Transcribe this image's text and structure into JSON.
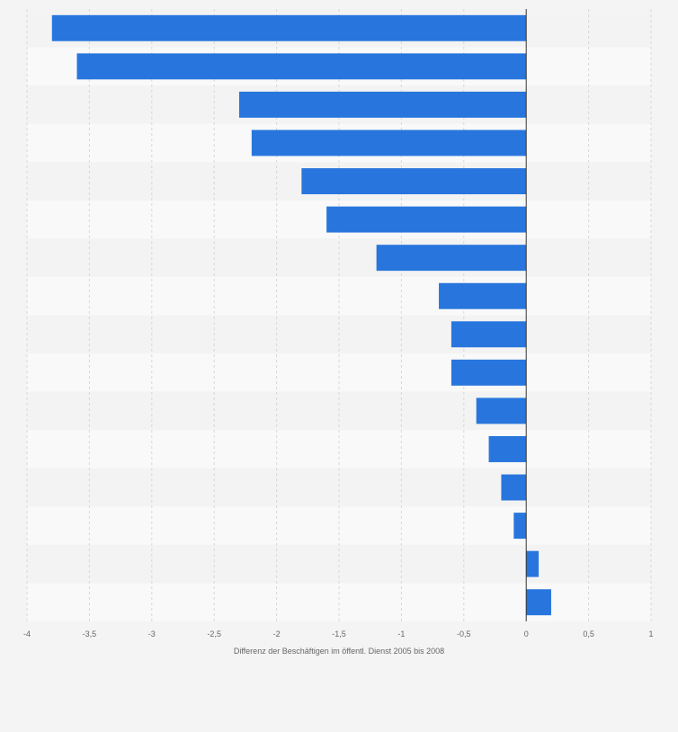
{
  "chart_data": {
    "type": "bar",
    "orientation": "horizontal",
    "title": "",
    "xlabel": "Differenz der Beschäftigen im öffentl. Dienst 2005 bis 2008",
    "ylabel": "",
    "xlim": [
      -4,
      1
    ],
    "ticks": [
      {
        "value": -4,
        "label": "-4"
      },
      {
        "value": -3.5,
        "label": "-3,5"
      },
      {
        "value": -3,
        "label": "-3"
      },
      {
        "value": -2.5,
        "label": "-2,5"
      },
      {
        "value": -2,
        "label": "-2"
      },
      {
        "value": -1.5,
        "label": "-1,5"
      },
      {
        "value": -1,
        "label": "-1"
      },
      {
        "value": -0.5,
        "label": "-0,5"
      },
      {
        "value": 0,
        "label": "0"
      },
      {
        "value": 0.5,
        "label": "0,5"
      },
      {
        "value": 1,
        "label": "1"
      }
    ],
    "values": [
      -3.8,
      -3.6,
      -2.3,
      -2.2,
      -1.8,
      -1.6,
      -1.2,
      -0.7,
      -0.6,
      -0.6,
      -0.4,
      -0.3,
      -0.2,
      -0.1,
      0.1,
      0.2
    ],
    "grid": true,
    "colors": {
      "bar": "#2876dd",
      "band_odd": "#f3f3f3",
      "band_even": "#f9f9f9",
      "grid": "#d8d8d8",
      "zero_line": "#333333",
      "text": "#666666"
    }
  }
}
